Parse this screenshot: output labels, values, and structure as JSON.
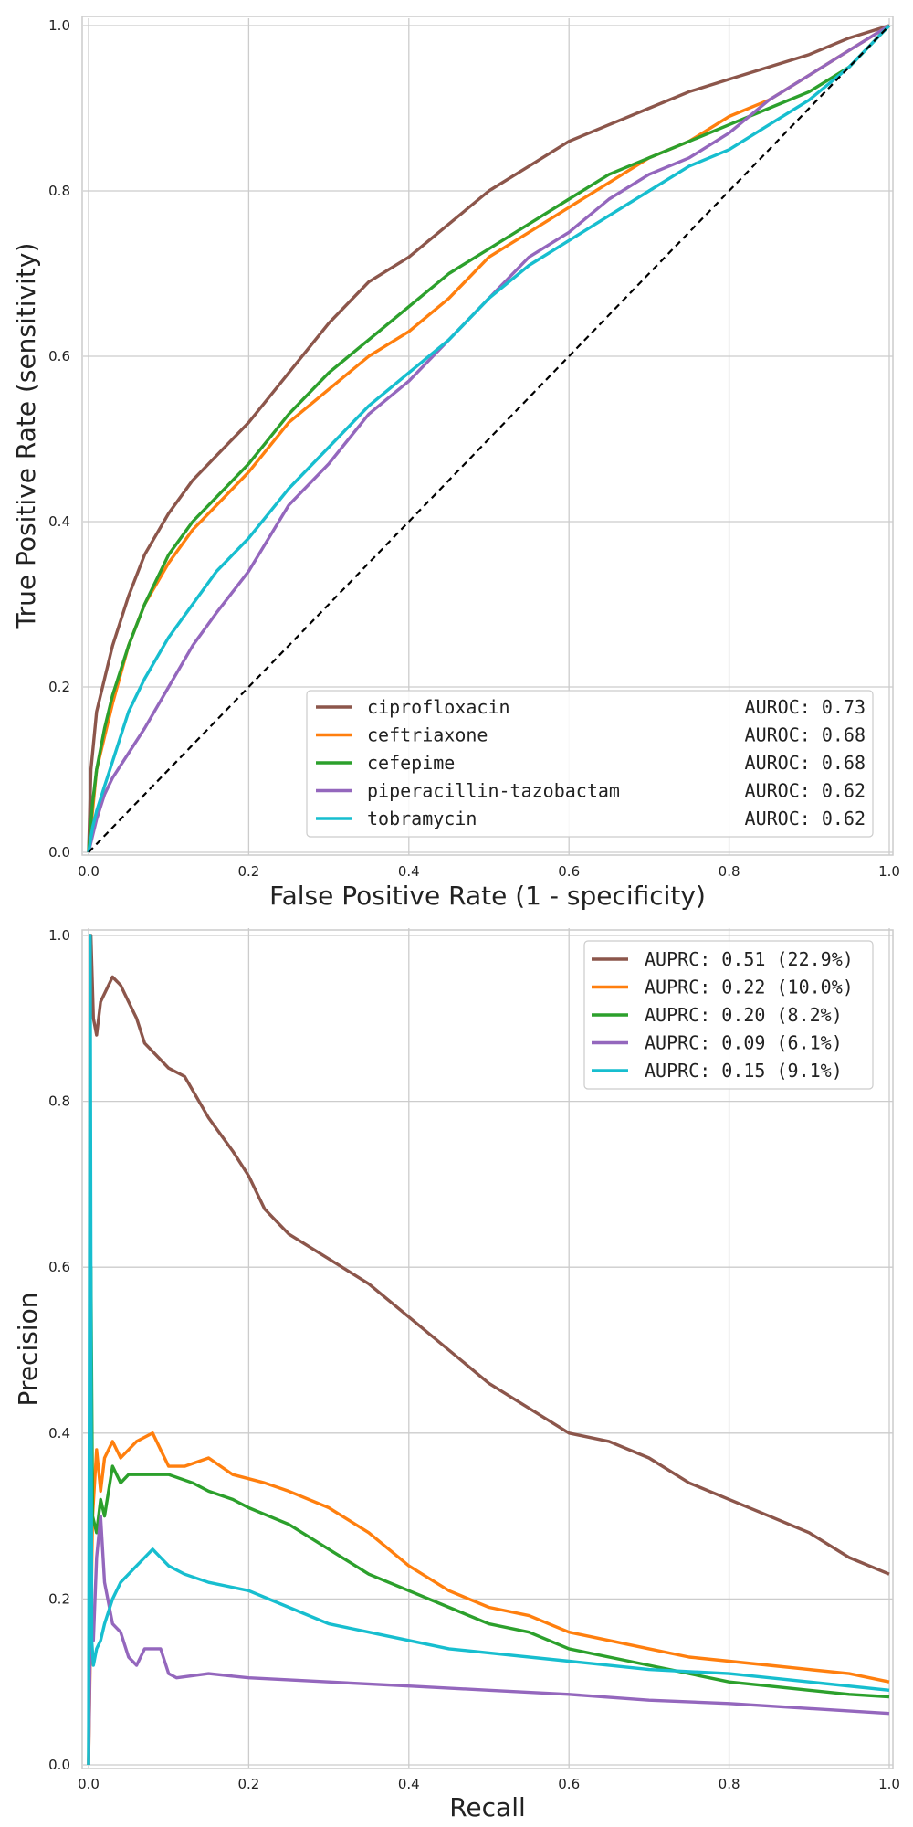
{
  "colors": {
    "ciprofloxacin": "#8c564b",
    "ceftriaxone": "#ff7f0e",
    "cefepime": "#2ca02c",
    "piperacillin-tazobactam": "#9467bd",
    "tobramycin": "#17becf",
    "chance": "#000000",
    "grid": "#cccccc"
  },
  "chart_data": [
    {
      "type": "line",
      "xlabel": "False Positive Rate (1 - specificity)",
      "ylabel": "True Positive Rate (sensitivity)",
      "xlim": [
        0,
        1
      ],
      "ylim": [
        0,
        1
      ],
      "xticks": [
        "0.0",
        "0.2",
        "0.4",
        "0.6",
        "0.8",
        "1.0"
      ],
      "yticks": [
        "0.0",
        "0.2",
        "0.4",
        "0.6",
        "0.8",
        "1.0"
      ],
      "grid": true,
      "legend_position": "lower-right",
      "series": [
        {
          "name": "ciprofloxacin",
          "auroc": "AUROC: 0.73",
          "color": "#8c564b",
          "x": [
            0,
            0.003,
            0.01,
            0.02,
            0.03,
            0.05,
            0.07,
            0.1,
            0.13,
            0.16,
            0.2,
            0.25,
            0.3,
            0.35,
            0.4,
            0.45,
            0.5,
            0.55,
            0.6,
            0.65,
            0.7,
            0.75,
            0.8,
            0.85,
            0.9,
            0.95,
            1.0
          ],
          "y": [
            0,
            0.1,
            0.17,
            0.21,
            0.25,
            0.31,
            0.36,
            0.41,
            0.45,
            0.48,
            0.52,
            0.58,
            0.64,
            0.69,
            0.72,
            0.76,
            0.8,
            0.83,
            0.86,
            0.88,
            0.9,
            0.92,
            0.935,
            0.95,
            0.965,
            0.985,
            1.0
          ]
        },
        {
          "name": "ceftriaxone",
          "auroc": "AUROC: 0.68",
          "color": "#ff7f0e",
          "x": [
            0,
            0.005,
            0.01,
            0.02,
            0.03,
            0.05,
            0.07,
            0.1,
            0.13,
            0.16,
            0.2,
            0.25,
            0.3,
            0.35,
            0.4,
            0.45,
            0.5,
            0.55,
            0.6,
            0.65,
            0.7,
            0.75,
            0.8,
            0.85,
            0.9,
            0.95,
            1.0
          ],
          "y": [
            0,
            0.05,
            0.1,
            0.14,
            0.18,
            0.25,
            0.3,
            0.35,
            0.39,
            0.42,
            0.46,
            0.52,
            0.56,
            0.6,
            0.63,
            0.67,
            0.72,
            0.75,
            0.78,
            0.81,
            0.84,
            0.86,
            0.89,
            0.91,
            0.94,
            0.97,
            1.0
          ]
        },
        {
          "name": "cefepime",
          "auroc": "AUROC: 0.68",
          "color": "#2ca02c",
          "x": [
            0,
            0.005,
            0.01,
            0.02,
            0.03,
            0.05,
            0.07,
            0.1,
            0.13,
            0.16,
            0.2,
            0.25,
            0.3,
            0.35,
            0.4,
            0.45,
            0.5,
            0.55,
            0.6,
            0.65,
            0.7,
            0.75,
            0.8,
            0.85,
            0.9,
            0.95,
            1.0
          ],
          "y": [
            0,
            0.06,
            0.1,
            0.15,
            0.19,
            0.25,
            0.3,
            0.36,
            0.4,
            0.43,
            0.47,
            0.53,
            0.58,
            0.62,
            0.66,
            0.7,
            0.73,
            0.76,
            0.79,
            0.82,
            0.84,
            0.86,
            0.88,
            0.9,
            0.92,
            0.95,
            1.0
          ]
        },
        {
          "name": "piperacillin-tazobactam",
          "auroc": "AUROC: 0.62",
          "color": "#9467bd",
          "x": [
            0,
            0.005,
            0.01,
            0.02,
            0.03,
            0.05,
            0.07,
            0.1,
            0.13,
            0.16,
            0.2,
            0.25,
            0.3,
            0.35,
            0.4,
            0.45,
            0.5,
            0.55,
            0.6,
            0.65,
            0.7,
            0.75,
            0.8,
            0.85,
            0.9,
            0.95,
            1.0
          ],
          "y": [
            0,
            0.02,
            0.04,
            0.07,
            0.09,
            0.12,
            0.15,
            0.2,
            0.25,
            0.29,
            0.34,
            0.42,
            0.47,
            0.53,
            0.57,
            0.62,
            0.67,
            0.72,
            0.75,
            0.79,
            0.82,
            0.84,
            0.87,
            0.91,
            0.94,
            0.97,
            1.0
          ]
        },
        {
          "name": "tobramycin",
          "auroc": "AUROC: 0.62",
          "color": "#17becf",
          "x": [
            0,
            0.005,
            0.01,
            0.02,
            0.03,
            0.05,
            0.07,
            0.1,
            0.13,
            0.16,
            0.2,
            0.25,
            0.3,
            0.35,
            0.4,
            0.45,
            0.5,
            0.55,
            0.6,
            0.65,
            0.7,
            0.75,
            0.8,
            0.85,
            0.9,
            0.95,
            1.0
          ],
          "y": [
            0,
            0.03,
            0.05,
            0.08,
            0.11,
            0.17,
            0.21,
            0.26,
            0.3,
            0.34,
            0.38,
            0.44,
            0.49,
            0.54,
            0.58,
            0.62,
            0.67,
            0.71,
            0.74,
            0.77,
            0.8,
            0.83,
            0.85,
            0.88,
            0.91,
            0.95,
            1.0
          ]
        },
        {
          "name": "",
          "color": "#000000",
          "dashed": true,
          "x": [
            0,
            1
          ],
          "y": [
            0,
            1
          ]
        }
      ]
    },
    {
      "type": "line",
      "xlabel": "Recall",
      "ylabel": "Precision",
      "xlim": [
        0,
        1
      ],
      "ylim": [
        0,
        1
      ],
      "xticks": [
        "0.0",
        "0.2",
        "0.4",
        "0.6",
        "0.8",
        "1.0"
      ],
      "yticks": [
        "0.0",
        "0.2",
        "0.4",
        "0.6",
        "0.8",
        "1.0"
      ],
      "grid": true,
      "legend_position": "top-right",
      "series": [
        {
          "name": "AUPRC: 0.51 (22.9%)",
          "color": "#8c564b",
          "x": [
            0,
            0.003,
            0.006,
            0.01,
            0.015,
            0.02,
            0.03,
            0.04,
            0.05,
            0.06,
            0.07,
            0.08,
            0.1,
            0.12,
            0.15,
            0.18,
            0.2,
            0.22,
            0.25,
            0.3,
            0.35,
            0.4,
            0.45,
            0.5,
            0.55,
            0.6,
            0.65,
            0.7,
            0.75,
            0.8,
            0.85,
            0.9,
            0.95,
            1.0
          ],
          "y": [
            1.0,
            1.0,
            0.9,
            0.88,
            0.92,
            0.93,
            0.95,
            0.94,
            0.92,
            0.9,
            0.87,
            0.86,
            0.84,
            0.83,
            0.78,
            0.74,
            0.71,
            0.67,
            0.64,
            0.61,
            0.58,
            0.54,
            0.5,
            0.46,
            0.43,
            0.4,
            0.39,
            0.37,
            0.34,
            0.32,
            0.3,
            0.28,
            0.25,
            0.23
          ]
        },
        {
          "name": "AUPRC: 0.22 (10.0%)",
          "color": "#ff7f0e",
          "x": [
            0,
            0.005,
            0.01,
            0.015,
            0.02,
            0.03,
            0.04,
            0.05,
            0.06,
            0.08,
            0.09,
            0.1,
            0.12,
            0.15,
            0.18,
            0.22,
            0.25,
            0.3,
            0.35,
            0.4,
            0.45,
            0.5,
            0.55,
            0.6,
            0.65,
            0.7,
            0.75,
            0.8,
            0.85,
            0.9,
            0.95,
            1.0
          ],
          "y": [
            0.0,
            0.3,
            0.38,
            0.33,
            0.37,
            0.39,
            0.37,
            0.38,
            0.39,
            0.4,
            0.38,
            0.36,
            0.36,
            0.37,
            0.35,
            0.34,
            0.33,
            0.31,
            0.28,
            0.24,
            0.21,
            0.19,
            0.18,
            0.16,
            0.15,
            0.14,
            0.13,
            0.125,
            0.12,
            0.115,
            0.11,
            0.1
          ]
        },
        {
          "name": "AUPRC: 0.20 (8.2%)",
          "color": "#2ca02c",
          "x": [
            0,
            0.003,
            0.005,
            0.01,
            0.015,
            0.02,
            0.03,
            0.04,
            0.05,
            0.07,
            0.1,
            0.13,
            0.15,
            0.18,
            0.2,
            0.25,
            0.3,
            0.35,
            0.4,
            0.45,
            0.5,
            0.55,
            0.6,
            0.65,
            0.7,
            0.75,
            0.8,
            0.85,
            0.9,
            0.95,
            1.0
          ],
          "y": [
            0.0,
            0.6,
            0.3,
            0.28,
            0.32,
            0.3,
            0.36,
            0.34,
            0.35,
            0.35,
            0.35,
            0.34,
            0.33,
            0.32,
            0.31,
            0.29,
            0.26,
            0.23,
            0.21,
            0.19,
            0.17,
            0.16,
            0.14,
            0.13,
            0.12,
            0.11,
            0.1,
            0.095,
            0.09,
            0.085,
            0.082
          ]
        },
        {
          "name": "AUPRC: 0.09 (6.1%)",
          "color": "#9467bd",
          "x": [
            0,
            0.003,
            0.006,
            0.01,
            0.015,
            0.02,
            0.03,
            0.04,
            0.05,
            0.06,
            0.07,
            0.08,
            0.09,
            0.1,
            0.11,
            0.15,
            0.2,
            0.3,
            0.4,
            0.5,
            0.6,
            0.7,
            0.8,
            0.9,
            1.0
          ],
          "y": [
            0.0,
            0.2,
            0.15,
            0.25,
            0.3,
            0.22,
            0.17,
            0.16,
            0.13,
            0.12,
            0.14,
            0.14,
            0.14,
            0.11,
            0.105,
            0.11,
            0.105,
            0.1,
            0.095,
            0.09,
            0.085,
            0.078,
            0.074,
            0.068,
            0.062
          ]
        },
        {
          "name": "AUPRC: 0.15 (9.1%)",
          "color": "#17becf",
          "x": [
            0,
            0.002,
            0.004,
            0.006,
            0.01,
            0.015,
            0.02,
            0.03,
            0.04,
            0.05,
            0.06,
            0.07,
            0.08,
            0.09,
            0.1,
            0.12,
            0.15,
            0.2,
            0.25,
            0.3,
            0.35,
            0.4,
            0.45,
            0.5,
            0.6,
            0.7,
            0.8,
            0.9,
            1.0
          ],
          "y": [
            0.0,
            1.0,
            0.15,
            0.12,
            0.14,
            0.15,
            0.17,
            0.2,
            0.22,
            0.23,
            0.24,
            0.25,
            0.26,
            0.25,
            0.24,
            0.23,
            0.22,
            0.21,
            0.19,
            0.17,
            0.16,
            0.15,
            0.14,
            0.135,
            0.125,
            0.115,
            0.11,
            0.1,
            0.09
          ]
        }
      ]
    }
  ]
}
